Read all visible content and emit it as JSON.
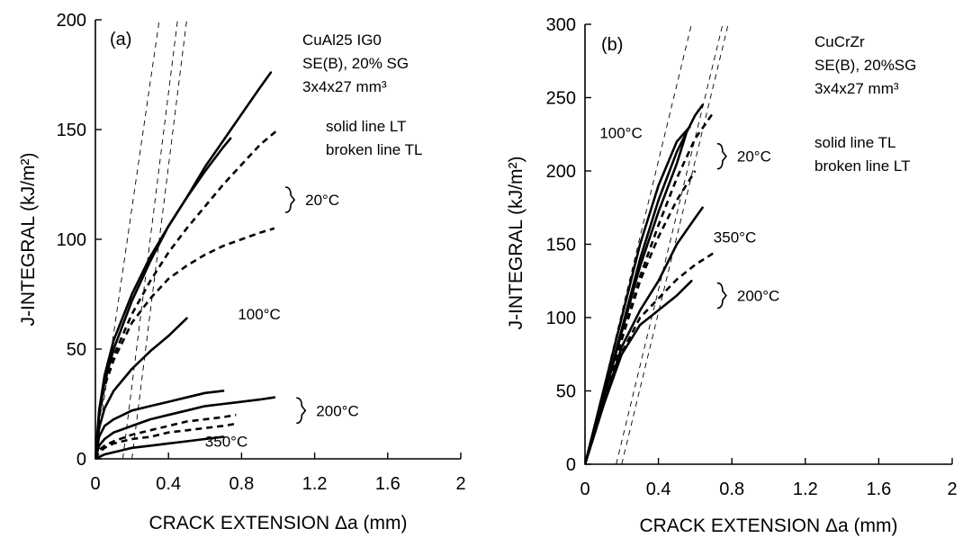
{
  "chart_data": [
    {
      "type": "line",
      "panel_label": "(a)",
      "xlabel": "CRACK EXTENSION Δa (mm)",
      "ylabel": "J-INTEGRAL (kJ/m²)",
      "xlim": [
        0,
        2
      ],
      "ylim": [
        0,
        200
      ],
      "x_ticks": [
        0,
        0.4,
        0.8,
        1.2,
        1.6,
        2
      ],
      "x_tick_labels": [
        "0",
        "0.4",
        "0.8",
        "1.2",
        "1.6",
        "2"
      ],
      "y_ticks": [
        0,
        50,
        100,
        150,
        200
      ],
      "y_tick_labels": [
        "0",
        "50",
        "100",
        "150",
        "200"
      ],
      "info_lines": [
        "CuAl25 IG0",
        "SE(B), 20% SG",
        "3x4x27 mm³"
      ],
      "legend_lines": [
        "solid line LT",
        "broken line TL"
      ],
      "temperature_labels": [
        {
          "text": "20°C",
          "x": 1.04,
          "y": 118,
          "brace": true
        },
        {
          "text": "100°C",
          "x": 0.78,
          "y": 66,
          "brace": false
        },
        {
          "text": "200°C",
          "x": 1.1,
          "y": 22,
          "brace": true
        },
        {
          "text": "350°C",
          "x": 0.6,
          "y": 8,
          "brace": false
        }
      ],
      "series": [
        {
          "style": "solid",
          "x": [
            0,
            0.02,
            0.05,
            0.1,
            0.2,
            0.3,
            0.4,
            0.5,
            0.6,
            0.7,
            0.8,
            0.9,
            0.96
          ],
          "y": [
            0,
            22,
            38,
            54,
            75,
            92,
            106,
            119,
            133,
            145,
            157,
            169,
            176
          ]
        },
        {
          "style": "solid",
          "x": [
            0,
            0.02,
            0.05,
            0.1,
            0.2,
            0.3,
            0.4,
            0.5,
            0.6,
            0.7,
            0.74
          ],
          "y": [
            0,
            20,
            35,
            50,
            72,
            90,
            106,
            119,
            131,
            142,
            146
          ]
        },
        {
          "style": "broken",
          "x": [
            0,
            0.02,
            0.05,
            0.1,
            0.2,
            0.3,
            0.4,
            0.5,
            0.6,
            0.7,
            0.8,
            0.9,
            1.0
          ],
          "y": [
            0,
            19,
            34,
            47,
            66,
            81,
            94,
            105,
            115,
            125,
            134,
            143,
            150
          ]
        },
        {
          "style": "broken",
          "x": [
            0,
            0.02,
            0.05,
            0.1,
            0.2,
            0.3,
            0.4,
            0.5,
            0.6,
            0.7,
            0.8,
            0.9,
            0.98
          ],
          "y": [
            0,
            19,
            33,
            45,
            62,
            73,
            82,
            88,
            93,
            97,
            100,
            103,
            105
          ]
        },
        {
          "style": "solid",
          "x": [
            0,
            0.02,
            0.05,
            0.1,
            0.2,
            0.3,
            0.4,
            0.45,
            0.5
          ],
          "y": [
            0,
            14,
            23,
            31,
            41,
            49,
            56,
            60,
            64
          ]
        },
        {
          "style": "solid",
          "x": [
            0,
            0.02,
            0.05,
            0.1,
            0.2,
            0.3,
            0.4,
            0.5,
            0.6,
            0.7
          ],
          "y": [
            0,
            10,
            15,
            18,
            22,
            24,
            26,
            28,
            30,
            31
          ]
        },
        {
          "style": "solid",
          "x": [
            0,
            0.02,
            0.05,
            0.1,
            0.2,
            0.3,
            0.4,
            0.5,
            0.6,
            0.7,
            0.8,
            0.9,
            0.98
          ],
          "y": [
            0,
            6,
            9,
            12,
            15,
            18,
            20,
            22,
            24,
            25,
            26,
            27,
            28
          ]
        },
        {
          "style": "broken",
          "x": [
            0,
            0.02,
            0.05,
            0.1,
            0.2,
            0.3,
            0.4,
            0.5,
            0.6,
            0.7,
            0.77
          ],
          "y": [
            0,
            4,
            6,
            8,
            11,
            13,
            15,
            17,
            18,
            19,
            20
          ]
        },
        {
          "style": "broken",
          "x": [
            0,
            0.02,
            0.05,
            0.1,
            0.2,
            0.3,
            0.4,
            0.5,
            0.6,
            0.7,
            0.77
          ],
          "y": [
            0,
            3,
            5,
            7,
            9,
            10,
            12,
            13,
            14,
            15,
            16
          ]
        },
        {
          "style": "solid",
          "x": [
            0,
            0.05,
            0.1,
            0.2,
            0.3,
            0.4,
            0.5,
            0.6,
            0.7
          ],
          "y": [
            0,
            2,
            3,
            5,
            6,
            7,
            8,
            9,
            10
          ]
        }
      ],
      "blunting_lines": [
        {
          "x": [
            0,
            0.35
          ],
          "y": [
            0,
            200
          ]
        },
        {
          "x": [
            0.15,
            0.45
          ],
          "y": [
            0,
            200
          ]
        },
        {
          "x": [
            0.2,
            0.5
          ],
          "y": [
            0,
            200
          ]
        }
      ]
    },
    {
      "type": "line",
      "panel_label": "(b)",
      "xlabel": "CRACK EXTENSION Δa (mm)",
      "ylabel": "J-INTEGRAL (kJ/m²)",
      "xlim": [
        0,
        2
      ],
      "ylim": [
        0,
        300
      ],
      "x_ticks": [
        0,
        0.4,
        0.8,
        1.2,
        1.6,
        2
      ],
      "x_tick_labels": [
        "0",
        "0.4",
        "0.8",
        "1.2",
        "1.6",
        "2"
      ],
      "y_ticks": [
        0,
        50,
        100,
        150,
        200,
        250,
        300
      ],
      "y_tick_labels": [
        "0",
        "50",
        "100",
        "150",
        "200",
        "250",
        "300"
      ],
      "info_lines": [
        "CuCrZr",
        "SE(B), 20%SG",
        "3x4x27 mm³"
      ],
      "legend_lines": [
        "solid line  TL",
        "broken line LT"
      ],
      "temperature_labels": [
        {
          "text": "100°C",
          "x": 0.08,
          "y": 226,
          "brace": false
        },
        {
          "text": "20°C",
          "x": 0.72,
          "y": 210,
          "brace": true
        },
        {
          "text": "350°C",
          "x": 0.7,
          "y": 155,
          "brace": false
        },
        {
          "text": "200°C",
          "x": 0.72,
          "y": 115,
          "brace": true
        }
      ],
      "series": [
        {
          "style": "solid",
          "x": [
            0,
            0.1,
            0.2,
            0.3,
            0.4,
            0.5,
            0.57
          ],
          "y": [
            0,
            50,
            100,
            150,
            190,
            220,
            230
          ]
        },
        {
          "style": "solid",
          "x": [
            0,
            0.1,
            0.2,
            0.3,
            0.4,
            0.5,
            0.6,
            0.64
          ],
          "y": [
            0,
            45,
            92,
            140,
            180,
            213,
            238,
            245
          ]
        },
        {
          "style": "solid",
          "x": [
            0,
            0.1,
            0.2,
            0.3,
            0.4,
            0.5,
            0.55
          ],
          "y": [
            0,
            44,
            90,
            135,
            172,
            205,
            225
          ]
        },
        {
          "style": "broken",
          "x": [
            0,
            0.1,
            0.2,
            0.3,
            0.4,
            0.5,
            0.6,
            0.7
          ],
          "y": [
            0,
            42,
            85,
            128,
            163,
            195,
            222,
            240
          ]
        },
        {
          "style": "broken",
          "x": [
            0,
            0.1,
            0.2,
            0.3,
            0.4,
            0.5,
            0.6
          ],
          "y": [
            0,
            42,
            85,
            125,
            155,
            180,
            200
          ]
        },
        {
          "style": "solid",
          "x": [
            0,
            0.1,
            0.2,
            0.3,
            0.4,
            0.5,
            0.6,
            0.64
          ],
          "y": [
            0,
            40,
            80,
            105,
            125,
            150,
            168,
            175
          ]
        },
        {
          "style": "broken",
          "x": [
            0,
            0.1,
            0.2,
            0.3,
            0.4,
            0.5,
            0.6,
            0.7
          ],
          "y": [
            0,
            40,
            76,
            100,
            113,
            126,
            136,
            144
          ]
        },
        {
          "style": "solid",
          "x": [
            0,
            0.1,
            0.2,
            0.3,
            0.4,
            0.5,
            0.58
          ],
          "y": [
            0,
            40,
            75,
            95,
            105,
            115,
            125
          ]
        }
      ],
      "blunting_lines": [
        {
          "x": [
            0,
            0.58
          ],
          "y": [
            0,
            300
          ]
        },
        {
          "x": [
            0.17,
            0.75
          ],
          "y": [
            0,
            300
          ]
        },
        {
          "x": [
            0.2,
            0.78
          ],
          "y": [
            0,
            300
          ]
        }
      ]
    }
  ]
}
